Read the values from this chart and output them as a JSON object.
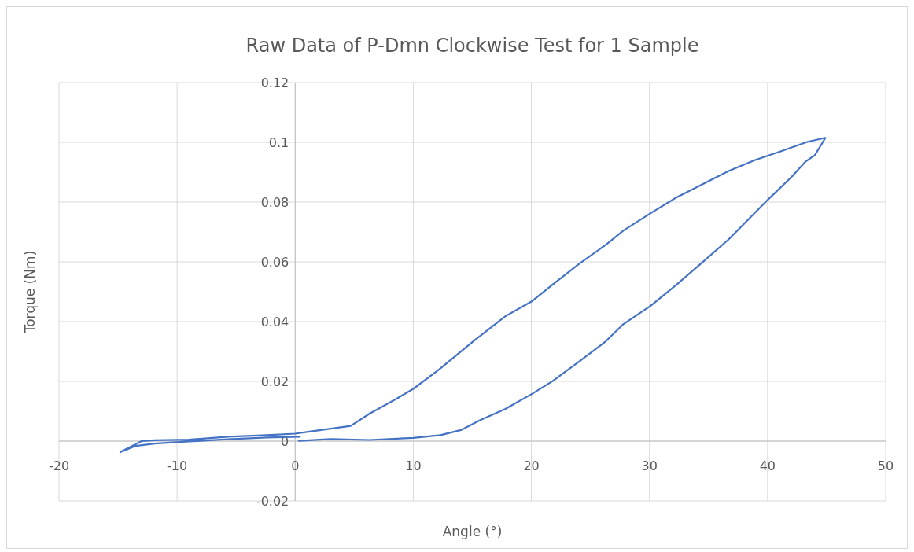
{
  "chart_data": {
    "type": "line",
    "title": "Raw Data of P-Dmn Clockwise Test for 1 Sample",
    "xlabel": "Angle (°)",
    "ylabel": "Torque (Nm)",
    "xlim": [
      -20,
      50
    ],
    "xticks": [
      -20,
      -10,
      0,
      10,
      20,
      30,
      40,
      50
    ],
    "ylim": [
      -0.02,
      0.12
    ],
    "yticks": [
      -0.02,
      0,
      0.02,
      0.04,
      0.06,
      0.08,
      0.1,
      0.12
    ],
    "grid": true,
    "marker": "none",
    "line_style": "solid",
    "series": [
      {
        "color": "#4472c4",
        "x": [
          0.4,
          -2.4,
          -5.7,
          -9,
          -11.9,
          -13.5,
          -14.8,
          -14.5,
          -13,
          -11.9,
          -9,
          -5.7,
          -2.4,
          0,
          0.5,
          4.7,
          6.3,
          8.5,
          10,
          12.1,
          15.2,
          17.8,
          20,
          21.8,
          24.1,
          26.3,
          27.8,
          30.1,
          32.3,
          34.5,
          36.7,
          38.9,
          41.2,
          43.4,
          44.9,
          44,
          43.2,
          42.1,
          40,
          38.9,
          36.7,
          34.5,
          32.3,
          30.1,
          27.8,
          26.3,
          24.1,
          21.8,
          20,
          17.8,
          15.6,
          14.1,
          12.3,
          10,
          6.3,
          3,
          0.3
        ],
        "values": [
          0.0015,
          0.0012,
          0.0006,
          -0.0001,
          -0.0008,
          -0.0016,
          -0.0037,
          -0.003,
          0,
          0.0003,
          0.0005,
          0.0015,
          0.002,
          0.0025,
          0.0028,
          0.0051,
          0.0092,
          0.014,
          0.0175,
          0.0237,
          0.0338,
          0.0418,
          0.0467,
          0.0524,
          0.0595,
          0.0657,
          0.0705,
          0.0763,
          0.0816,
          0.086,
          0.0904,
          0.094,
          0.0971,
          0.1002,
          0.1015,
          0.0957,
          0.0935,
          0.0887,
          0.0807,
          0.0763,
          0.0675,
          0.0599,
          0.0524,
          0.0453,
          0.0392,
          0.0334,
          0.0268,
          0.0201,
          0.0157,
          0.0108,
          0.0069,
          0.0038,
          0.002,
          0.0011,
          0.0004,
          0.0007,
          0.0001
        ]
      }
    ]
  }
}
